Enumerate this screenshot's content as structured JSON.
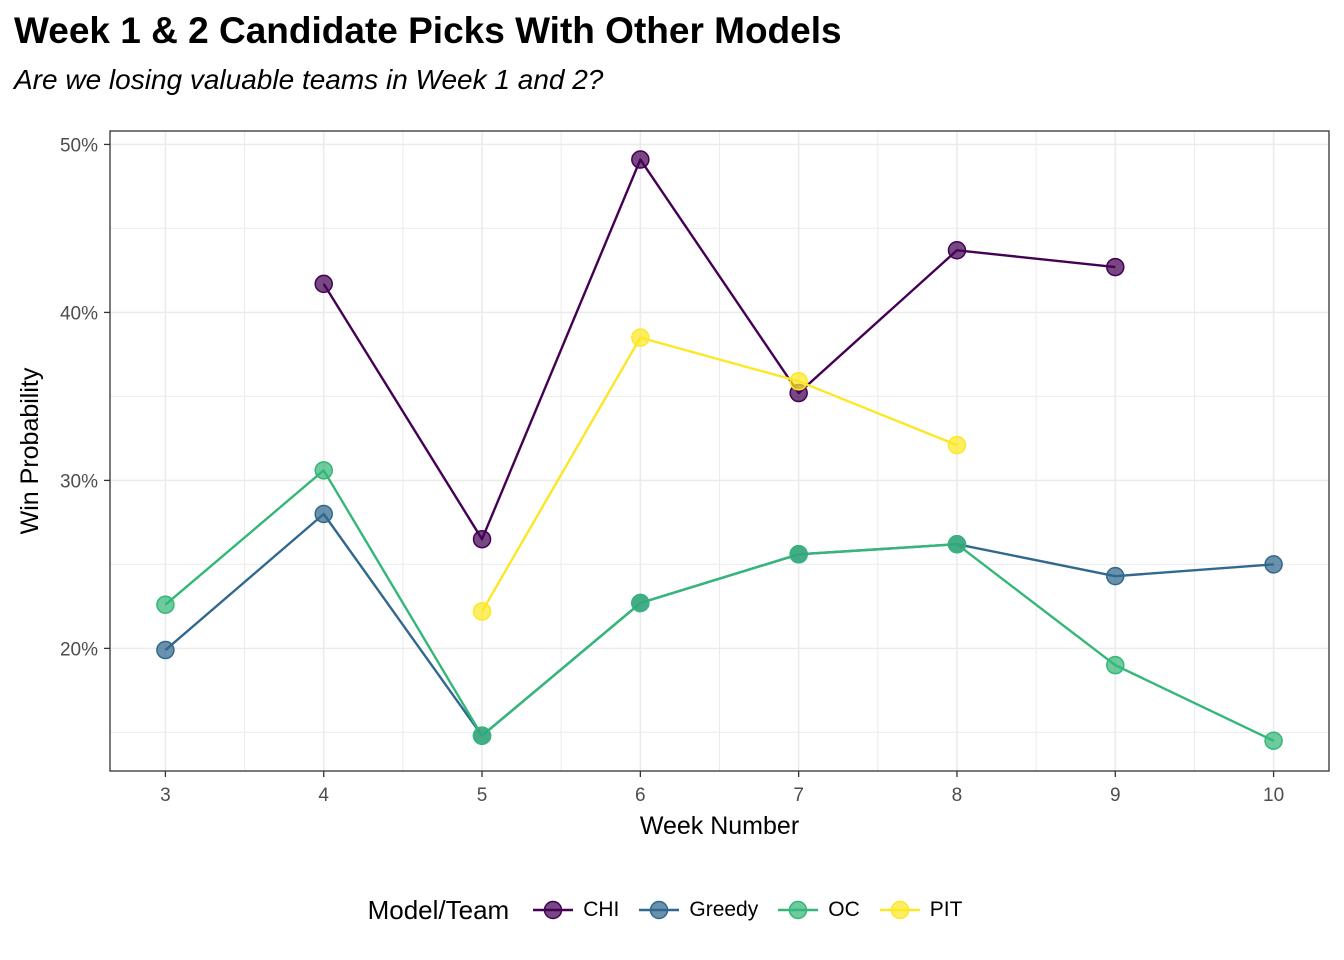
{
  "chart_data": {
    "type": "line",
    "title": "Week 1 & 2 Candidate Picks With Other Models",
    "subtitle": "Are we losing valuable teams in Week 1 and 2?",
    "xlabel": "Week Number",
    "ylabel": "Win Probability",
    "x_ticks": [
      3,
      4,
      5,
      6,
      7,
      8,
      9,
      10
    ],
    "x_tick_labels": [
      "3",
      "4",
      "5",
      "6",
      "7",
      "8",
      "9",
      "10"
    ],
    "y_ticks": [
      0.2,
      0.3,
      0.4,
      0.5
    ],
    "y_tick_labels": [
      "20%",
      "30%",
      "40%",
      "50%"
    ],
    "xlim": [
      2.65,
      10.35
    ],
    "ylim": [
      0.127,
      0.508
    ],
    "grid": true,
    "legend_title": "Model/Team",
    "legend_position": "bottom",
    "series": [
      {
        "name": "CHI",
        "color": "#440154",
        "x": [
          4,
          5,
          6,
          7,
          8,
          9
        ],
        "y": [
          0.417,
          0.265,
          0.491,
          0.352,
          0.437,
          0.427
        ]
      },
      {
        "name": "Greedy",
        "color": "#31688E",
        "x": [
          3,
          4,
          5,
          6,
          7,
          8,
          9,
          10
        ],
        "y": [
          0.199,
          0.28,
          0.148,
          0.227,
          0.256,
          0.262,
          0.243,
          0.25
        ]
      },
      {
        "name": "OC",
        "color": "#35B779",
        "x": [
          3,
          4,
          5,
          6,
          7,
          8,
          9,
          10
        ],
        "y": [
          0.226,
          0.306,
          0.148,
          0.227,
          0.256,
          0.262,
          0.19,
          0.145
        ]
      },
      {
        "name": "PIT",
        "color": "#FDE725",
        "x": [
          5,
          6,
          7,
          8
        ],
        "y": [
          0.222,
          0.385,
          0.359,
          0.321
        ]
      }
    ]
  }
}
